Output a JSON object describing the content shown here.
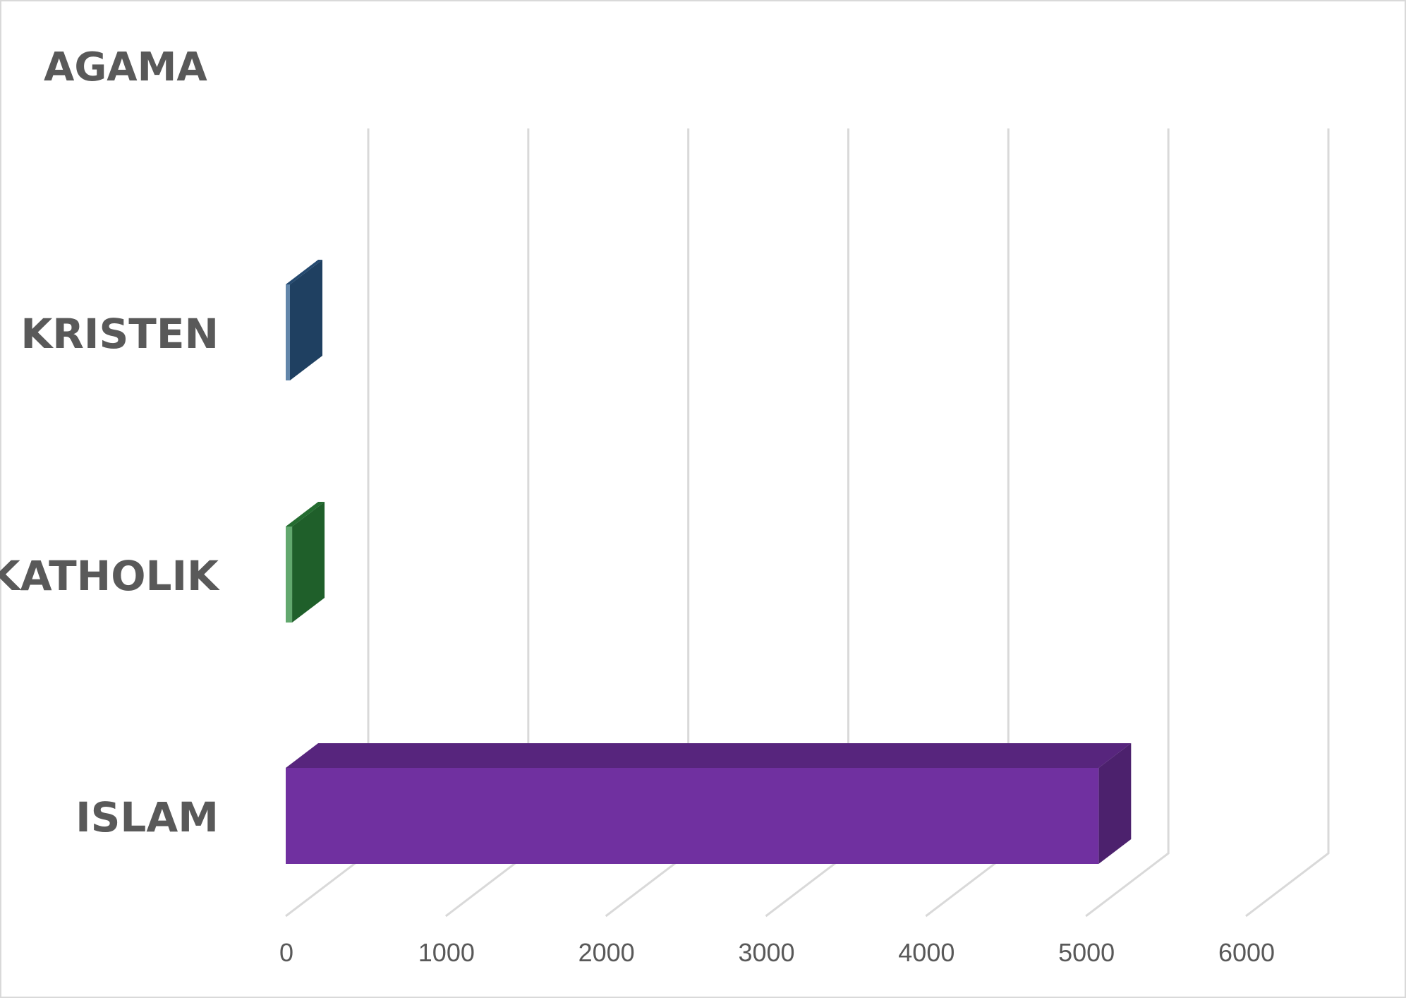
{
  "chart_data": {
    "type": "bar",
    "orientation": "horizontal",
    "three_d": true,
    "title": "AGAMA",
    "xlabel": "",
    "ylabel": "",
    "categories": [
      "KRISTEN",
      "KATHOLIK",
      "ISLAM"
    ],
    "values": [
      20,
      40,
      5080
    ],
    "xlim": [
      0,
      6000
    ],
    "ticks": [
      "0",
      "1000",
      "2000",
      "3000",
      "4000",
      "5000",
      "6000"
    ],
    "colors": [
      "#2E5E8E",
      "#2E8B3E",
      "#7030A0"
    ],
    "grid": true,
    "legend": "none"
  }
}
